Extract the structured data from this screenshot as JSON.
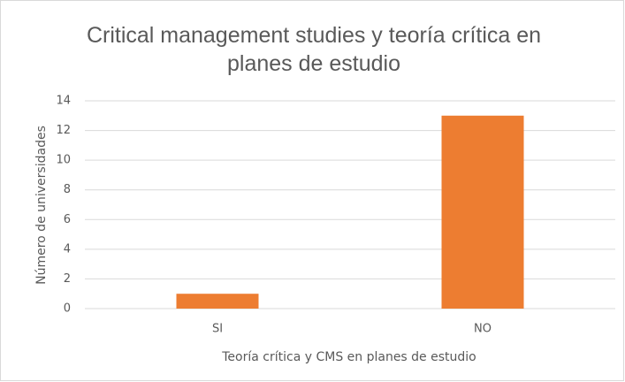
{
  "chart_data": {
    "type": "bar",
    "title": "Critical management studies y teoría crítica en planes de estudio",
    "x_label": "Teoría crítica y CMS en planes de estudio",
    "y_label": "Número de universidades",
    "categories": [
      "SI",
      "NO"
    ],
    "values": [
      1,
      13
    ],
    "color": "#ed7d31",
    "ylim": [
      0,
      14
    ],
    "yticks": [
      0,
      2,
      4,
      6,
      8,
      10,
      12,
      14
    ],
    "grid": true
  }
}
